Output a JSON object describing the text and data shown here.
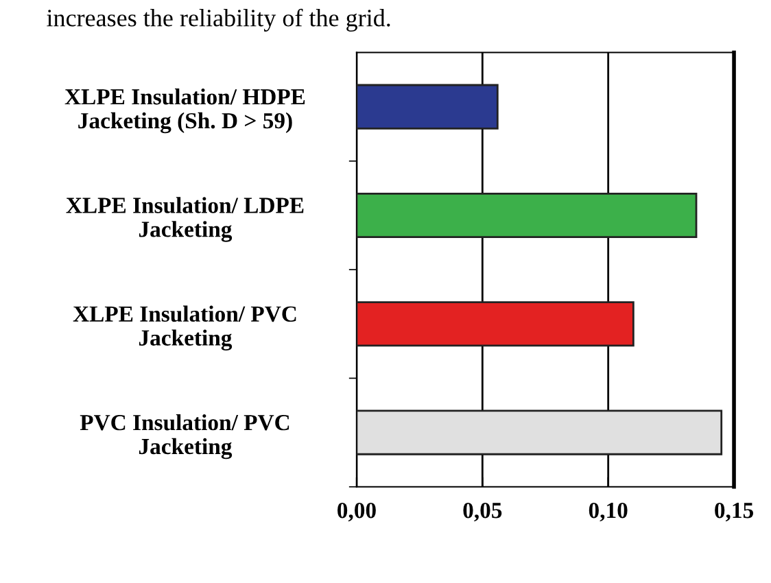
{
  "chart_data": {
    "type": "bar",
    "orientation": "horizontal",
    "categories": [
      "XLPE Insulation/ HDPE\nJacketing (Sh. D > 59)",
      "XLPE Insulation/ LDPE\nJacketing",
      "XLPE Insulation/ PVC\nJacketing",
      "PVC Insulation/ PVC\nJacketing"
    ],
    "values": [
      0.056,
      0.135,
      0.11,
      0.145
    ],
    "colors": [
      "#2b3a90",
      "#3cb04a",
      "#e32222",
      "#e0e0e0"
    ],
    "xlim": [
      0,
      0.15
    ],
    "xticks": [
      {
        "value": 0,
        "label": "0,00"
      },
      {
        "value": 0.05,
        "label": "0,05"
      },
      {
        "value": 0.1,
        "label": "0,10"
      },
      {
        "value": 0.15,
        "label": "0,15"
      }
    ],
    "grid": "x",
    "annotations": [
      "increases the reliability of the grid."
    ]
  }
}
